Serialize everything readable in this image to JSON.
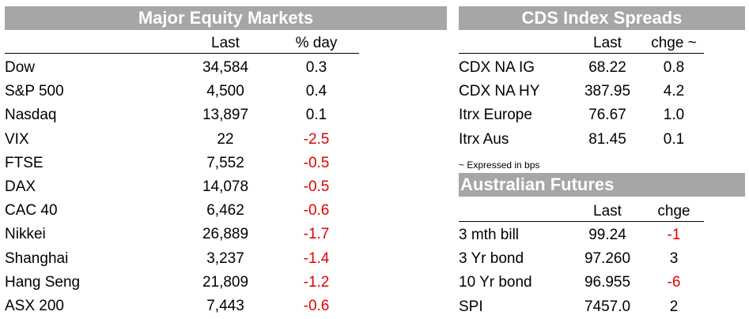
{
  "equity": {
    "title": "Major Equity Markets",
    "col_last": "Last",
    "col_pct": "% day",
    "rows": [
      {
        "name": "Dow",
        "last": "34,584",
        "chg": "0.3"
      },
      {
        "name": "S&P 500",
        "last": "4,500",
        "chg": "0.4"
      },
      {
        "name": "Nasdaq",
        "last": "13,897",
        "chg": "0.1"
      },
      {
        "name": "VIX",
        "last": "22",
        "chg": "-2.5"
      },
      {
        "name": "FTSE",
        "last": "7,552",
        "chg": "-0.5"
      },
      {
        "name": "DAX",
        "last": "14,078",
        "chg": "-0.5"
      },
      {
        "name": "CAC 40",
        "last": "6,462",
        "chg": "-0.6"
      },
      {
        "name": "Nikkei",
        "last": "26,889",
        "chg": "-1.7"
      },
      {
        "name": "Shanghai",
        "last": "3,237",
        "chg": "-1.4"
      },
      {
        "name": "Hang Seng",
        "last": "21,809",
        "chg": "-1.2"
      },
      {
        "name": "ASX 200",
        "last": "7,443",
        "chg": "-0.6"
      }
    ]
  },
  "cds": {
    "title": "CDS Index Spreads",
    "col_last": "Last",
    "col_chg": "chge ~",
    "rows": [
      {
        "name": "CDX NA IG",
        "last": "68.22",
        "chg": "0.8"
      },
      {
        "name": "CDX NA HY",
        "last": "387.95",
        "chg": "4.2"
      },
      {
        "name": "Itrx Europe",
        "last": "76.67",
        "chg": "1.0"
      },
      {
        "name": "Itrx Aus",
        "last": "81.45",
        "chg": "0.1"
      }
    ],
    "note": "~ Expressed in bps"
  },
  "futures": {
    "title": "Australian Futures",
    "col_last": "Last",
    "col_chg": "chge",
    "rows": [
      {
        "name": "3 mth bill",
        "last": "99.24",
        "chg": "-1"
      },
      {
        "name": "3 Yr bond",
        "last": "97.260",
        "chg": "3"
      },
      {
        "name": "10 Yr bond",
        "last": "96.955",
        "chg": "-6"
      },
      {
        "name": "SPI",
        "last": "7457.0",
        "chg": "2"
      }
    ]
  },
  "colors": {
    "header_bg": "#a6a6a6",
    "negative": "#e00000"
  }
}
